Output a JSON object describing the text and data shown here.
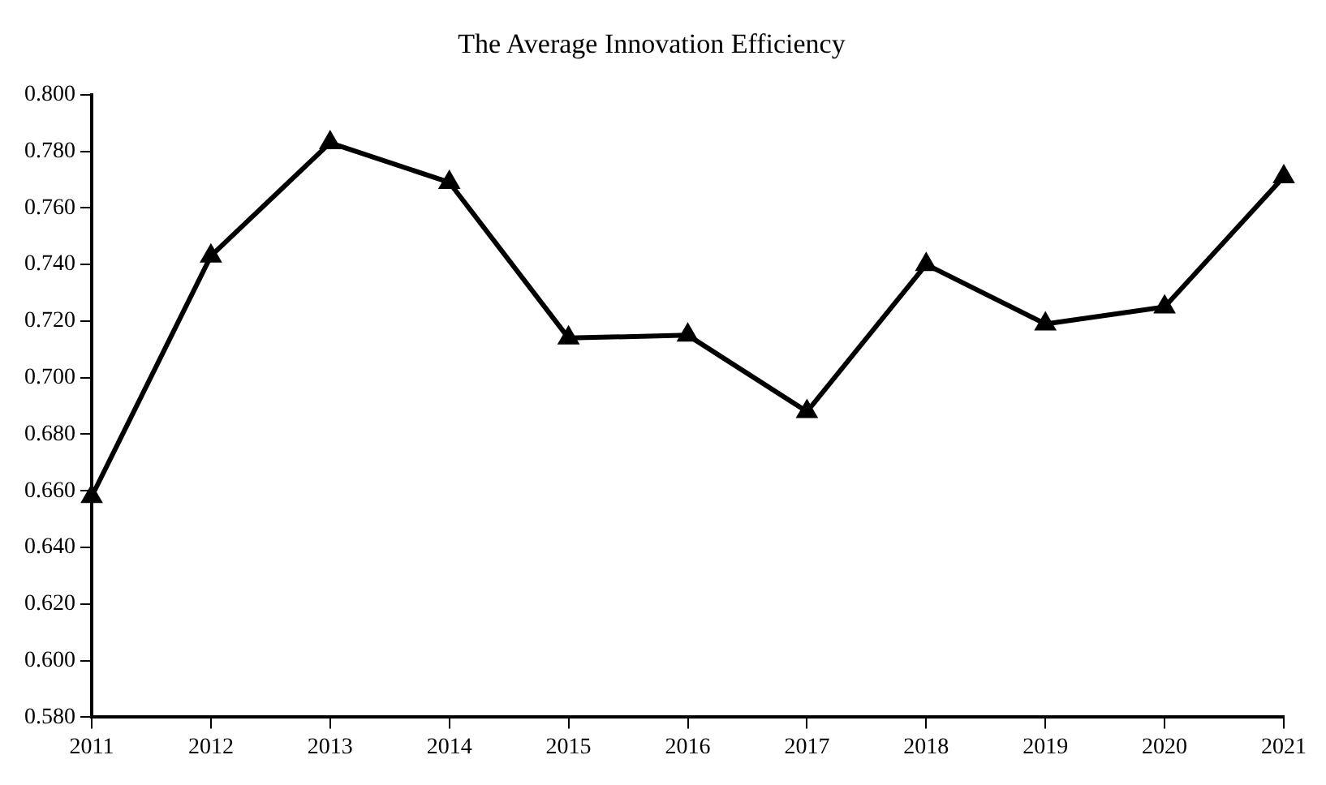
{
  "chart_data": {
    "type": "line",
    "title": "The Average Innovation Efficiency",
    "categories": [
      "2011",
      "2012",
      "2013",
      "2014",
      "2015",
      "2016",
      "2017",
      "2018",
      "2019",
      "2020",
      "2021"
    ],
    "series": [
      {
        "color": "#000000",
        "values": [
          0.658,
          0.743,
          0.783,
          0.769,
          0.714,
          0.715,
          0.688,
          0.74,
          0.719,
          0.725,
          0.771
        ]
      }
    ],
    "ylim": [
      0.58,
      0.8
    ],
    "yticks": [
      {
        "value": 0.58,
        "label": "0.580"
      },
      {
        "value": 0.6,
        "label": "0.600"
      },
      {
        "value": 0.62,
        "label": "0.620"
      },
      {
        "value": 0.64,
        "label": "0.640"
      },
      {
        "value": 0.66,
        "label": "0.660"
      },
      {
        "value": 0.68,
        "label": "0.680"
      },
      {
        "value": 0.7,
        "label": "0.700"
      },
      {
        "value": 0.72,
        "label": "0.720"
      },
      {
        "value": 0.74,
        "label": "0.740"
      },
      {
        "value": 0.76,
        "label": "0.760"
      },
      {
        "value": 0.78,
        "label": "0.780"
      },
      {
        "value": 0.8,
        "label": "0.800"
      }
    ],
    "grid": false,
    "legend": false,
    "marker": "triangle",
    "line_style": "solid"
  }
}
